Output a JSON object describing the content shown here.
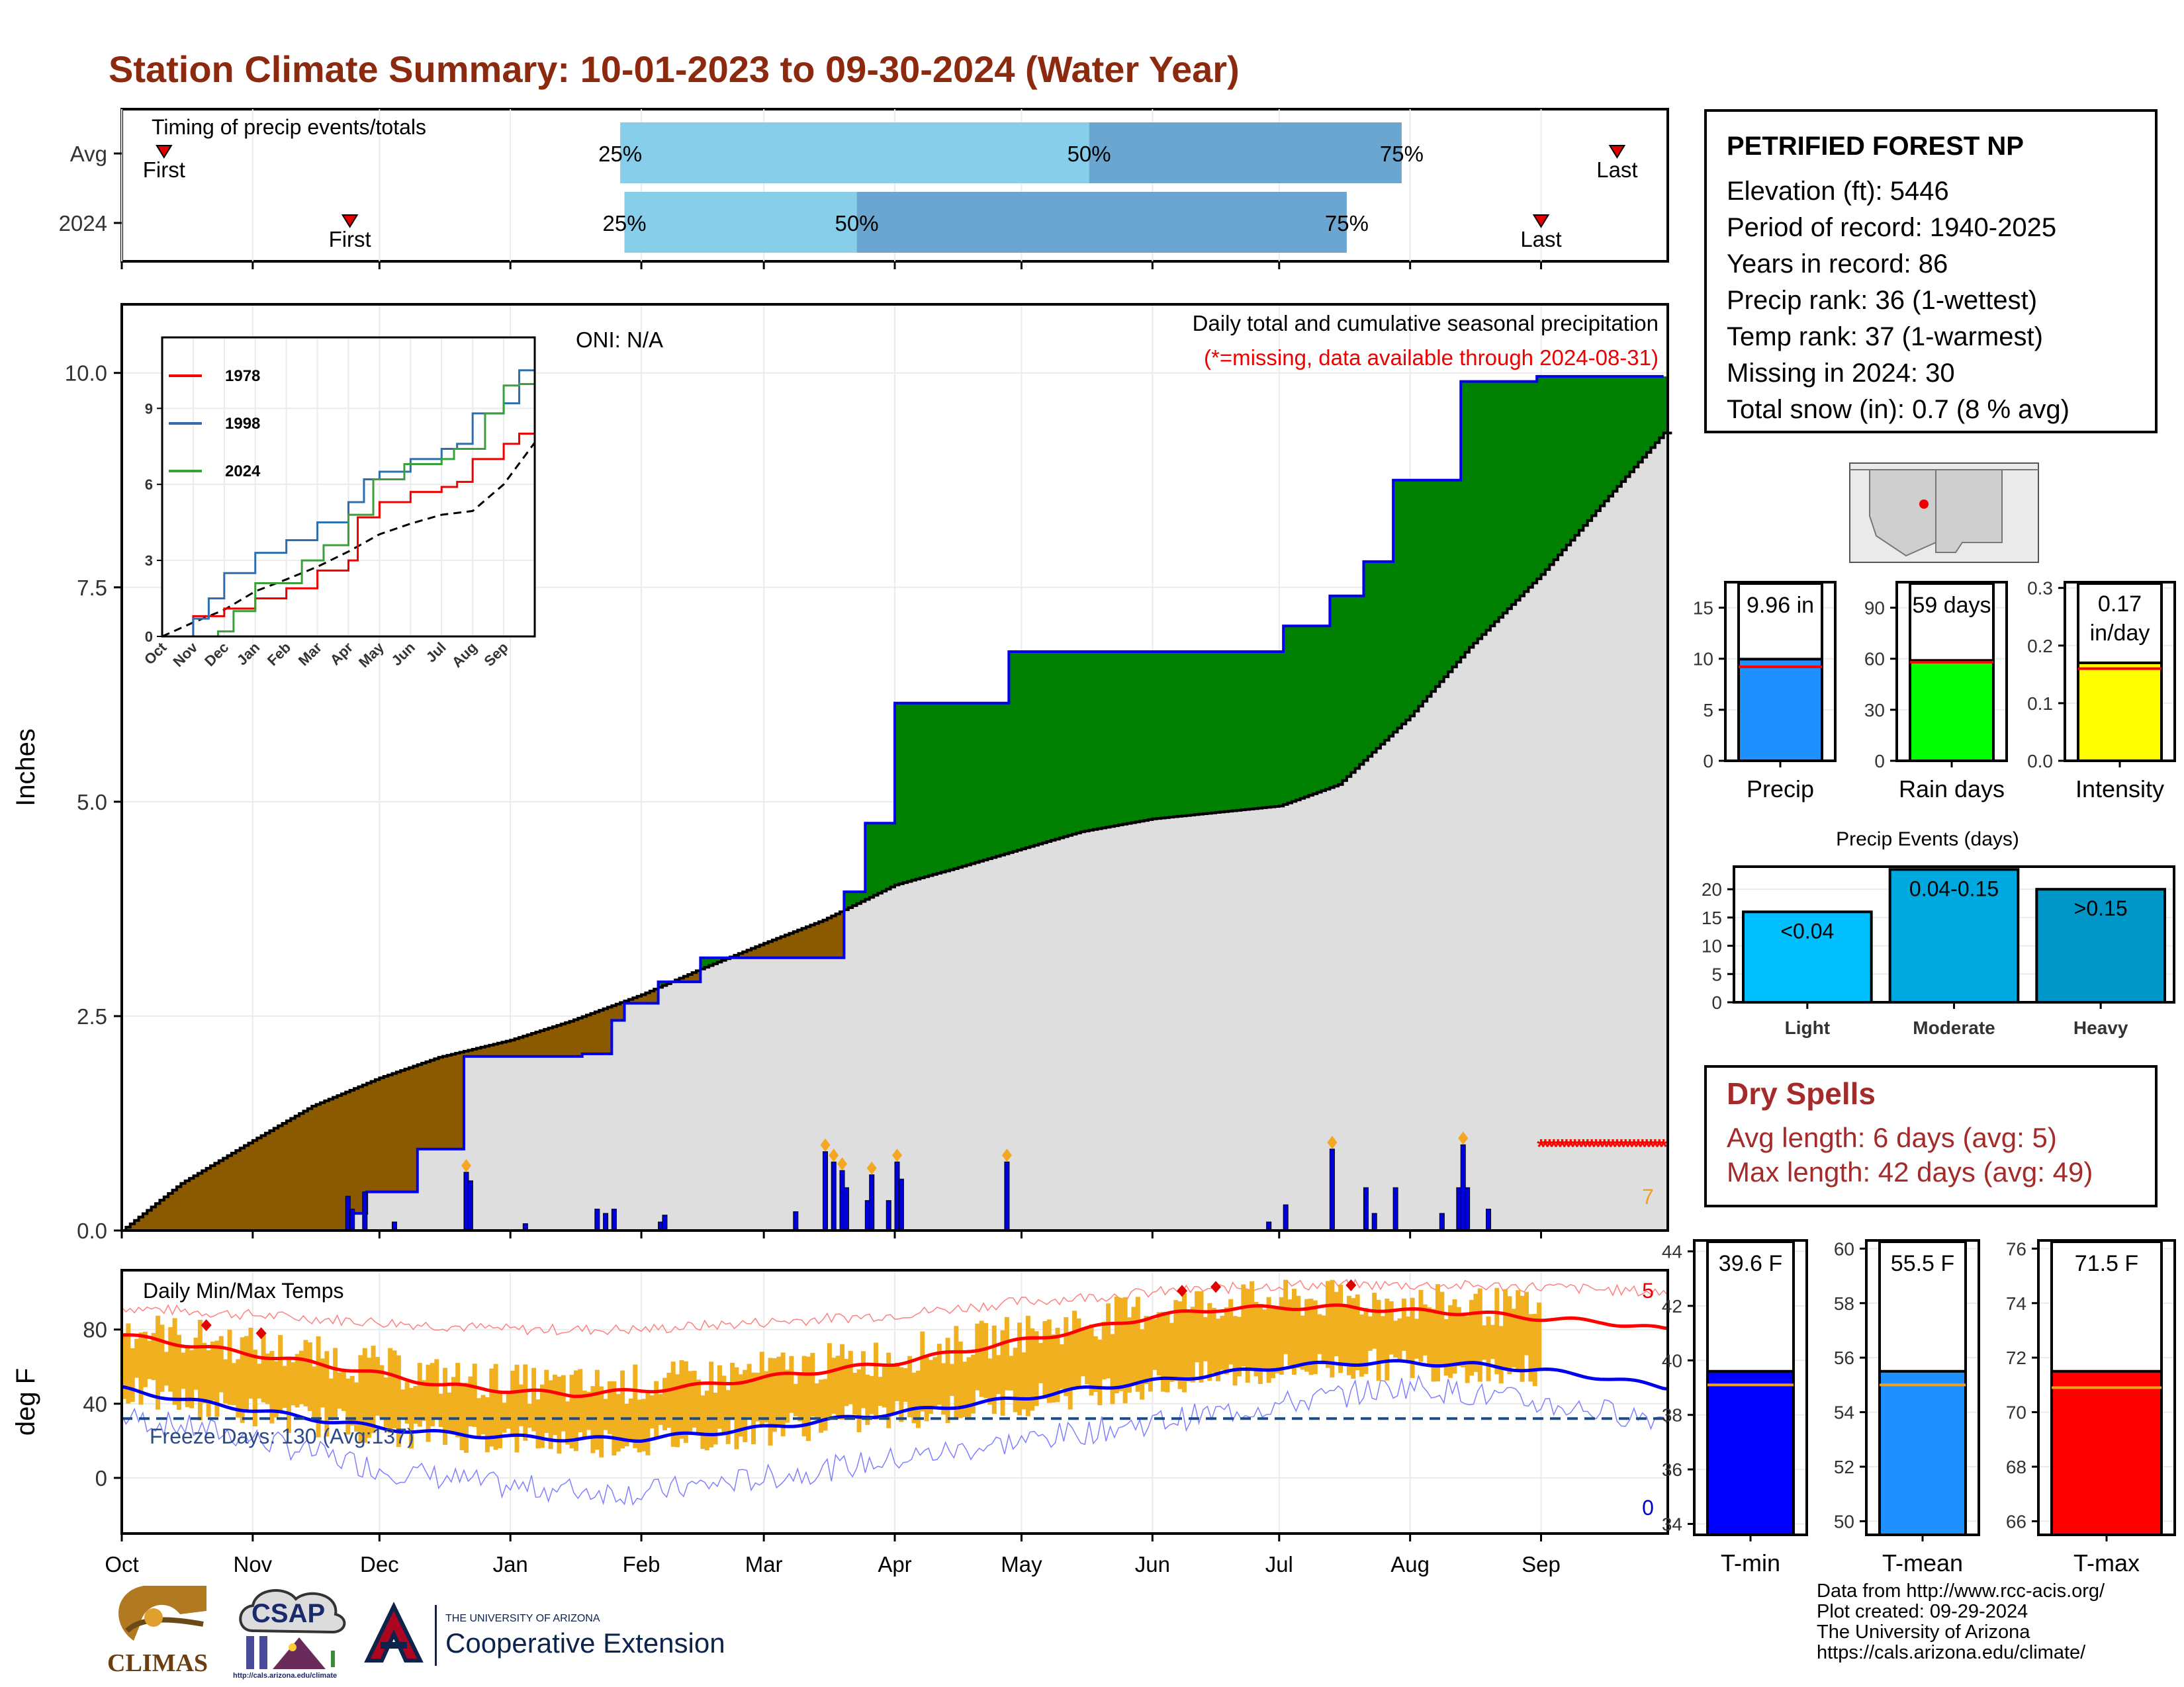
{
  "title": "Station Climate Summary: 10-01-2023 to 09-30-2024 (Water Year)",
  "station": {
    "name": "PETRIFIED FOREST NP",
    "lines": [
      "Elevation (ft): 5446",
      "Period of record: 1940-2025",
      "Years in record: 86",
      "Precip rank: 36 (1-wettest)",
      "Temp rank: 37 (1-warmest)",
      "Missing in 2024: 30",
      "Total snow (in): 0.7 (8 % avg)"
    ]
  },
  "dry_spells": {
    "title": "Dry Spells",
    "avg_length": "Avg length: 6 days (avg: 5)",
    "max_length": "Max length: 42 days (avg: 49)"
  },
  "credits": [
    "Data from http://www.rcc-acis.org/",
    "Plot created: 09-29-2024",
    "The University of Arizona",
    "https://cals.arizona.edu/climate/"
  ],
  "logos": {
    "climas": "CLIMAS",
    "csap": "CSAP",
    "csap_url": "http://cals.arizona.edu/climate",
    "ua_small": "THE UNIVERSITY OF ARIZONA",
    "ua_big": "Cooperative Extension"
  },
  "colors": {
    "title": "#8b2a0f",
    "above_avg": "#008000",
    "below_avg": "#8b5a00",
    "avg_fill": "#dedede",
    "precip_line": "#0000ee",
    "tmax_bar": "#f0b020",
    "tmax_line": "#ff0000",
    "tmin_line": "#0000ee",
    "missing": "#ff0000",
    "light": "#00bfff",
    "moderate": "#00a8e0",
    "heavy": "#0096c8"
  },
  "chart_data": [
    {
      "id": "timing",
      "type": "bar",
      "title": "Timing of precip events/totals",
      "categories": [
        "Avg",
        "2024"
      ],
      "months": [
        "Oct",
        "Nov",
        "Dec",
        "Jan",
        "Feb",
        "Mar",
        "Apr",
        "May",
        "Jun",
        "Jul",
        "Aug",
        "Sep"
      ],
      "avg": {
        "first": "2023-10-11",
        "q25": "2024-01-27",
        "q50": "2024-05-17",
        "q75": "2024-07-30",
        "last": "2024-09-19"
      },
      "y2024": {
        "first": "2023-11-24",
        "q25": "2024-01-28",
        "q50": "2024-03-23",
        "q75": "2024-07-17",
        "last": "2024-09-01"
      },
      "labels": {
        "first": "First",
        "last": "Last",
        "q25": "25%",
        "q50": "50%",
        "q75": "75%"
      }
    },
    {
      "id": "precip",
      "type": "area",
      "title": "Daily total and cumulative seasonal precipitation",
      "subtitle": "(*=missing, data available through 2024-08-31)",
      "oni": "ONI: N/A",
      "ylabel": "Inches",
      "ylim": [
        0,
        10.8
      ],
      "yticks": [
        0,
        2.5,
        5,
        7.5,
        10
      ],
      "ytick_labels": [
        "0.0",
        "2.5",
        "5.0",
        "7.5",
        "10.0"
      ],
      "months": [
        "Oct",
        "Nov",
        "Dec",
        "Jan",
        "Feb",
        "Mar",
        "Apr",
        "May",
        "Jun",
        "Jul",
        "Aug",
        "Sep"
      ],
      "corner_count": "7",
      "avg_cumulative": {
        "x": [
          "2023-10-01",
          "2023-10-15",
          "2023-11-01",
          "2023-11-15",
          "2023-12-01",
          "2023-12-15",
          "2024-01-01",
          "2024-01-15",
          "2024-02-01",
          "2024-02-15",
          "2024-03-01",
          "2024-03-15",
          "2024-04-01",
          "2024-04-15",
          "2024-05-01",
          "2024-05-15",
          "2024-06-01",
          "2024-06-15",
          "2024-07-01",
          "2024-07-15",
          "2024-08-01",
          "2024-08-15",
          "2024-09-01",
          "2024-09-15",
          "2024-09-30"
        ],
        "y": [
          0.0,
          0.55,
          1.05,
          1.45,
          1.78,
          2.02,
          2.22,
          2.44,
          2.75,
          3.05,
          3.35,
          3.62,
          4.03,
          4.22,
          4.45,
          4.65,
          4.8,
          4.87,
          4.95,
          5.2,
          6.0,
          6.8,
          7.65,
          8.45,
          9.3
        ]
      },
      "y2024_cumulative": {
        "x": [
          "2023-10-01",
          "2023-11-23",
          "2023-11-24",
          "2023-11-28",
          "2023-12-10",
          "2023-12-21",
          "2024-01-18",
          "2024-01-25",
          "2024-01-28",
          "2024-02-05",
          "2024-02-15",
          "2024-03-13",
          "2024-03-20",
          "2024-03-25",
          "2024-04-01",
          "2024-04-28",
          "2024-06-29",
          "2024-07-02",
          "2024-07-13",
          "2024-07-21",
          "2024-07-28",
          "2024-08-13",
          "2024-08-31",
          "2024-09-30"
        ],
        "y": [
          0.0,
          0.0,
          0.2,
          0.45,
          0.95,
          2.03,
          2.06,
          2.45,
          2.65,
          2.9,
          3.18,
          3.18,
          3.95,
          4.75,
          6.15,
          6.75,
          6.75,
          7.05,
          7.4,
          7.8,
          8.75,
          9.9,
          9.96,
          9.96
        ]
      },
      "daily_bars": {
        "x": [
          "2023-11-23",
          "2023-11-24",
          "2023-11-27",
          "2023-12-04",
          "2023-12-21",
          "2023-12-22",
          "2024-01-04",
          "2024-01-21",
          "2024-01-23",
          "2024-01-25",
          "2024-02-05",
          "2024-02-06",
          "2024-03-08",
          "2024-03-15",
          "2024-03-17",
          "2024-03-19",
          "2024-03-20",
          "2024-03-25",
          "2024-03-26",
          "2024-03-30",
          "2024-04-01",
          "2024-04-02",
          "2024-04-27",
          "2024-06-28",
          "2024-07-02",
          "2024-07-13",
          "2024-07-21",
          "2024-07-23",
          "2024-07-28",
          "2024-08-08",
          "2024-08-12",
          "2024-08-13",
          "2024-08-14",
          "2024-08-19"
        ],
        "values": [
          0.4,
          0.25,
          0.45,
          0.1,
          0.68,
          0.58,
          0.08,
          0.25,
          0.2,
          0.25,
          0.1,
          0.18,
          0.22,
          0.92,
          0.8,
          0.7,
          0.5,
          0.35,
          0.65,
          0.35,
          0.8,
          0.6,
          0.8,
          0.1,
          0.3,
          0.95,
          0.5,
          0.2,
          0.5,
          0.2,
          0.5,
          1.0,
          0.5,
          0.25
        ]
      },
      "missing_range": [
        "2024-09-01",
        "2024-09-30"
      ],
      "inset": {
        "type": "line",
        "yticks": [
          0,
          3,
          6,
          9
        ],
        "months": [
          "Oct",
          "Nov",
          "Dec",
          "Jan",
          "Feb",
          "Mar",
          "Apr",
          "May",
          "Jun",
          "Jul",
          "Aug",
          "Sep"
        ],
        "series": [
          {
            "name": "1978",
            "color": "#ee0000",
            "x": [
              0,
              1,
              2,
              3,
              4,
              5,
              6,
              6.3,
              7,
              8,
              9,
              9.5,
              10,
              11,
              11.5,
              12
            ],
            "y": [
              0,
              0.8,
              1.1,
              1.5,
              1.9,
              2.6,
              3.0,
              4.7,
              5.3,
              5.7,
              5.9,
              6.1,
              7.0,
              7.6,
              8.0,
              8.8
            ]
          },
          {
            "name": "1998",
            "color": "#2c6fb0",
            "x": [
              0,
              1,
              1.5,
              2,
              3,
              4,
              5,
              6,
              6.5,
              7,
              8,
              9,
              9.5,
              10,
              11,
              11.5,
              12
            ],
            "y": [
              0,
              0.7,
              1.5,
              2.5,
              3.3,
              3.8,
              4.5,
              5.3,
              6.2,
              6.5,
              7.0,
              7.4,
              7.6,
              8.8,
              9.2,
              10.5,
              11.5
            ]
          },
          {
            "name": "2024",
            "color": "#3aa03a",
            "x": [
              0,
              1.8,
              2.3,
              3,
              4.5,
              5.2,
              6,
              6.8,
              7.8,
              9,
              9.4,
              10.4,
              11,
              11.5,
              12
            ],
            "y": [
              0,
              0.2,
              1.0,
              2.1,
              3.0,
              3.6,
              4.8,
              6.2,
              6.8,
              7.0,
              7.4,
              8.8,
              9.9,
              9.96,
              9.96
            ]
          }
        ],
        "avg": {
          "x": [
            0,
            1,
            2,
            3,
            4,
            5,
            6,
            7,
            8,
            9,
            10,
            11,
            12
          ],
          "y": [
            0,
            0.55,
            1.05,
            1.78,
            2.25,
            2.75,
            3.35,
            4.03,
            4.45,
            4.8,
            4.95,
            6.0,
            7.65
          ]
        }
      }
    },
    {
      "id": "temps",
      "type": "line",
      "title": "Daily Min/Max Temps",
      "ylabel": "deg F",
      "ylim": [
        -30,
        112
      ],
      "yticks": [
        0,
        40,
        80
      ],
      "months": [
        "Oct",
        "Nov",
        "Dec",
        "Jan",
        "Feb",
        "Mar",
        "Apr",
        "May",
        "Jun",
        "Jul",
        "Aug",
        "Sep"
      ],
      "freeze_label": "Freeze Days: 130 (Avg:137)",
      "freeze_line": 32,
      "count_top": "5",
      "count_bottom": "0",
      "avg_tmax": {
        "x": [
          0,
          15,
          30,
          45,
          61,
          76,
          92,
          107,
          123,
          138,
          152,
          167,
          183,
          198,
          213,
          228,
          244,
          259,
          275,
          290,
          305,
          320,
          336,
          351,
          365
        ],
        "y": [
          77,
          72,
          67,
          62,
          56,
          50,
          47,
          45,
          47,
          50,
          54,
          58,
          62,
          68,
          74,
          80,
          87,
          91,
          92,
          92,
          90,
          89,
          86,
          84,
          80
        ]
      },
      "avg_tmin": {
        "x": [
          0,
          15,
          30,
          45,
          61,
          76,
          92,
          107,
          123,
          138,
          152,
          167,
          183,
          198,
          213,
          228,
          244,
          259,
          275,
          290,
          305,
          320,
          336,
          351,
          365
        ],
        "y": [
          48,
          42,
          37,
          32,
          27,
          24,
          22,
          21,
          21,
          24,
          27,
          31,
          35,
          39,
          43,
          48,
          52,
          56,
          60,
          62,
          62,
          61,
          58,
          54,
          49
        ]
      },
      "rec_high": {
        "x": [
          0,
          30,
          61,
          92,
          123,
          152,
          183,
          213,
          244,
          275,
          305,
          336,
          365
        ],
        "y": [
          92,
          88,
          84,
          80,
          80,
          84,
          88,
          95,
          100,
          104,
          104,
          103,
          100
        ]
      },
      "rec_low": {
        "x": [
          0,
          30,
          61,
          92,
          123,
          152,
          183,
          213,
          244,
          275,
          305,
          336,
          365
        ],
        "y": [
          33,
          22,
          5,
          -5,
          -8,
          0,
          10,
          20,
          30,
          40,
          50,
          40,
          32
        ]
      },
      "obs_range_days": [
        0,
        335
      ]
    },
    {
      "id": "precip_summary",
      "type": "bar",
      "panels": [
        {
          "label": "Precip",
          "value": 9.96,
          "avg": 9.2,
          "value_text": "9.96 in",
          "ylim": [
            0,
            17.5
          ],
          "yticks": [
            0,
            5,
            10,
            15
          ],
          "color": "#1e90ff"
        },
        {
          "label": "Rain days",
          "value": 59,
          "avg": 58,
          "value_text": "59 days",
          "ylim": [
            0,
            105
          ],
          "yticks": [
            0,
            30,
            60,
            90
          ],
          "color": "#00ff00"
        },
        {
          "label": "Intensity",
          "value": 0.17,
          "avg": 0.16,
          "value_text": "0.17 in/day",
          "ylim": [
            0,
            0.31
          ],
          "yticks": [
            0.0,
            0.1,
            0.2,
            0.3
          ],
          "ytick_labels": [
            "0.0",
            "0.1",
            "0.2",
            "0.3"
          ],
          "color": "#ffff00"
        }
      ]
    },
    {
      "id": "precip_events",
      "type": "bar",
      "title": "Precip Events (days)",
      "categories": [
        "Light",
        "Moderate",
        "Heavy"
      ],
      "values": [
        16,
        23.5,
        20
      ],
      "value_labels": [
        "<0.04",
        "0.04-0.15",
        ">0.15"
      ],
      "ylim": [
        0,
        24
      ],
      "yticks": [
        0,
        5,
        10,
        15,
        20
      ]
    },
    {
      "id": "temp_summary",
      "type": "bar",
      "panels": [
        {
          "label": "T-min",
          "value": 39.6,
          "avg": 39.1,
          "value_text": "39.6 F",
          "ylim": [
            33.6,
            44.4
          ],
          "yticks": [
            34,
            36,
            38,
            40,
            42,
            44
          ],
          "color": "#0000ff"
        },
        {
          "label": "T-mean",
          "value": 55.5,
          "avg": 55.0,
          "value_text": "55.5 F",
          "ylim": [
            49.5,
            60.3
          ],
          "yticks": [
            50,
            52,
            54,
            56,
            58,
            60
          ],
          "color": "#1e90ff"
        },
        {
          "label": "T-max",
          "value": 71.5,
          "avg": 70.9,
          "value_text": "71.5 F",
          "ylim": [
            65.5,
            76.3
          ],
          "yticks": [
            66,
            68,
            70,
            72,
            74,
            76
          ],
          "color": "#ff0000"
        }
      ]
    }
  ]
}
